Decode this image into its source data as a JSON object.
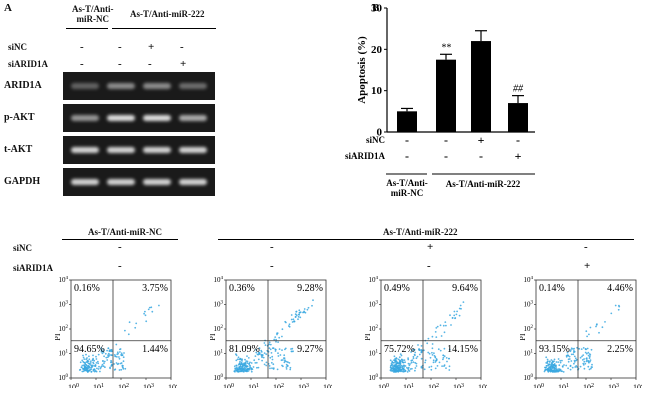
{
  "panel_a": {
    "letter": "A",
    "group_nc": "As-T/Anti-\nmiR-NC",
    "group_222": "As-T/Anti-miR-222",
    "treatments": [
      "siNC",
      "siARID1A"
    ],
    "signs": [
      [
        "-",
        "-",
        "+",
        "-"
      ],
      [
        "-",
        "-",
        "-",
        "+"
      ]
    ],
    "blots": [
      {
        "label": "ARID1A",
        "intensity": [
          0.35,
          0.55,
          0.55,
          0.4
        ]
      },
      {
        "label": "p-AKT",
        "intensity": [
          0.6,
          0.95,
          0.95,
          0.7
        ]
      },
      {
        "label": "t-AKT",
        "intensity": [
          0.9,
          0.9,
          0.9,
          0.9
        ]
      },
      {
        "label": "GAPDH",
        "intensity": [
          0.9,
          0.9,
          0.9,
          0.9
        ]
      }
    ]
  },
  "panel_b": {
    "letter": "B",
    "signs_sinc": [
      "-",
      "-",
      "+",
      "-"
    ],
    "signs_siarid": [
      "-",
      "-",
      "-",
      "+"
    ],
    "label_sinc": "siNC",
    "label_siarid": "siARID1A",
    "group_nc": "As-T/Anti-\nmiR-NC",
    "group_222": "As-T/Anti-miR-222",
    "chart_data": {
      "type": "bar",
      "categories": [
        "NC",
        "miR-222",
        "miR-222 + siNC",
        "miR-222 + siARID1A"
      ],
      "values": [
        5,
        17.5,
        22,
        7
      ],
      "errors": [
        0.7,
        1.3,
        2.5,
        1.8
      ],
      "annotations": [
        "",
        "**",
        "",
        "##"
      ],
      "ylabel": "Apoptosis (%)",
      "ylim": [
        0,
        30
      ],
      "yticks": [
        "0",
        "10",
        "20",
        "30"
      ]
    }
  },
  "panel_c": {
    "group_nc": "As-T/Anti-miR-NC",
    "group_222": "As-T/Anti-miR-222",
    "label_sinc": "siNC",
    "label_siarid": "siARID1A",
    "signs_sinc": [
      "-",
      "-",
      "+",
      "-"
    ],
    "signs_siarid": [
      "-",
      "-",
      "-",
      "+"
    ],
    "axis_ylabel": "PI",
    "tick_base": "10",
    "tick_exps": [
      "0",
      "1",
      "2",
      "3",
      "4"
    ],
    "plots": [
      {
        "ul": "0.16%",
        "ur": "3.75%",
        "ll": "94.65%",
        "lr": "1.44%",
        "spread": 0.35
      },
      {
        "ul": "0.36%",
        "ur": "9.28%",
        "ll": "81.09%",
        "lr": "9.27%",
        "spread": 0.75
      },
      {
        "ul": "0.49%",
        "ur": "9.64%",
        "ll": "75.72%",
        "lr": "14.15%",
        "spread": 0.85
      },
      {
        "ul": "0.14%",
        "ur": "4.46%",
        "ll": "93.15%",
        "lr": "2.25%",
        "spread": 0.4
      }
    ]
  }
}
